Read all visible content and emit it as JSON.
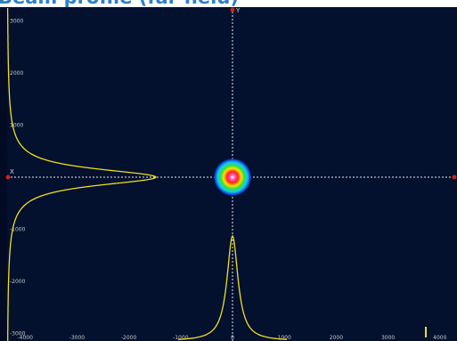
{
  "header": {
    "title": "Beam profile (far field)"
  },
  "plot": {
    "x_axis_label": "X",
    "y_axis_label": "Y",
    "x_ticks": [
      -4000,
      -3000,
      -2000,
      -1000,
      0,
      1000,
      2000,
      3000,
      4000
    ],
    "y_ticks": [
      3000,
      2000,
      1000,
      -1000,
      -2000,
      -3000
    ]
  }
}
